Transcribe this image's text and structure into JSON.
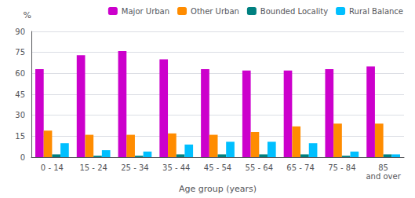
{
  "chart_data": {
    "type": "bar",
    "xlabel": "Age group (years)",
    "ylabel": "%",
    "categories": [
      "0 - 14",
      "15 - 24",
      "25 - 34",
      "35 - 44",
      "45 - 54",
      "55 - 64",
      "65 - 74",
      "75 - 84",
      "85\nand over"
    ],
    "series": [
      {
        "name": "Major Urban",
        "color": "#CC00CC",
        "values": [
          63,
          73,
          76,
          70,
          63,
          62,
          62,
          63,
          65
        ]
      },
      {
        "name": "Other Urban",
        "color": "#FF8C00",
        "values": [
          19,
          16,
          16,
          17,
          16,
          18,
          22,
          24,
          24
        ]
      },
      {
        "name": "Bounded Locality",
        "color": "#008080",
        "values": [
          2,
          1,
          1,
          2,
          2,
          2,
          2,
          1,
          2
        ]
      },
      {
        "name": "Rural Balance",
        "color": "#00BFFF",
        "values": [
          10,
          5,
          4,
          9,
          11,
          11,
          10,
          4,
          2
        ]
      }
    ],
    "ylim": [
      0,
      90
    ],
    "yticks": [
      0,
      15,
      30,
      45,
      60,
      75,
      90
    ],
    "grid": true,
    "legend": "upper right"
  }
}
